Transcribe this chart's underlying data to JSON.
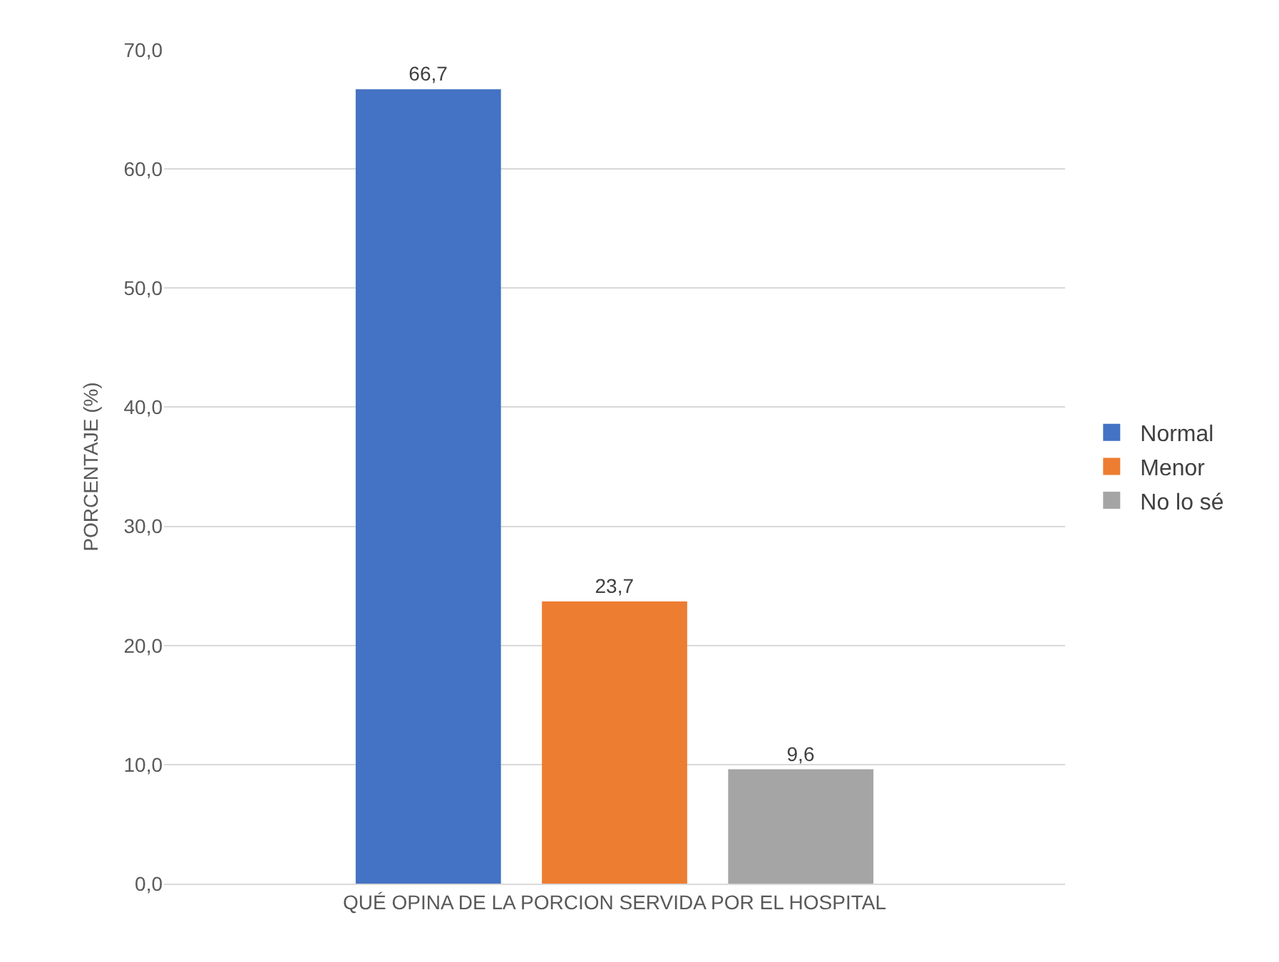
{
  "chart_data": {
    "type": "bar",
    "ylabel": "PORCENTAJE (%)",
    "categories": [
      "QUÉ OPINA DE LA PORCION SERVIDA POR EL HOSPITAL"
    ],
    "series": [
      {
        "name": "Normal",
        "color": "#4472c4",
        "values": [
          66.7
        ],
        "value_labels": [
          "66,7"
        ]
      },
      {
        "name": "Menor",
        "color": "#ed7d31",
        "values": [
          23.7
        ],
        "value_labels": [
          "23,7"
        ]
      },
      {
        "name": "No lo sé",
        "color": "#a5a5a5",
        "values": [
          9.6
        ],
        "value_labels": [
          "9,6"
        ]
      }
    ],
    "ylim": [
      0,
      70
    ],
    "yticks": [
      {
        "value": 0,
        "label": "0,0"
      },
      {
        "value": 10,
        "label": "10,0"
      },
      {
        "value": 20,
        "label": "20,0"
      },
      {
        "value": 30,
        "label": "30,0"
      },
      {
        "value": 40,
        "label": "40,0"
      },
      {
        "value": 50,
        "label": "50,0"
      },
      {
        "value": 60,
        "label": "60,0"
      },
      {
        "value": 70,
        "label": "70,0"
      }
    ],
    "grid": "y",
    "legend": "right"
  }
}
